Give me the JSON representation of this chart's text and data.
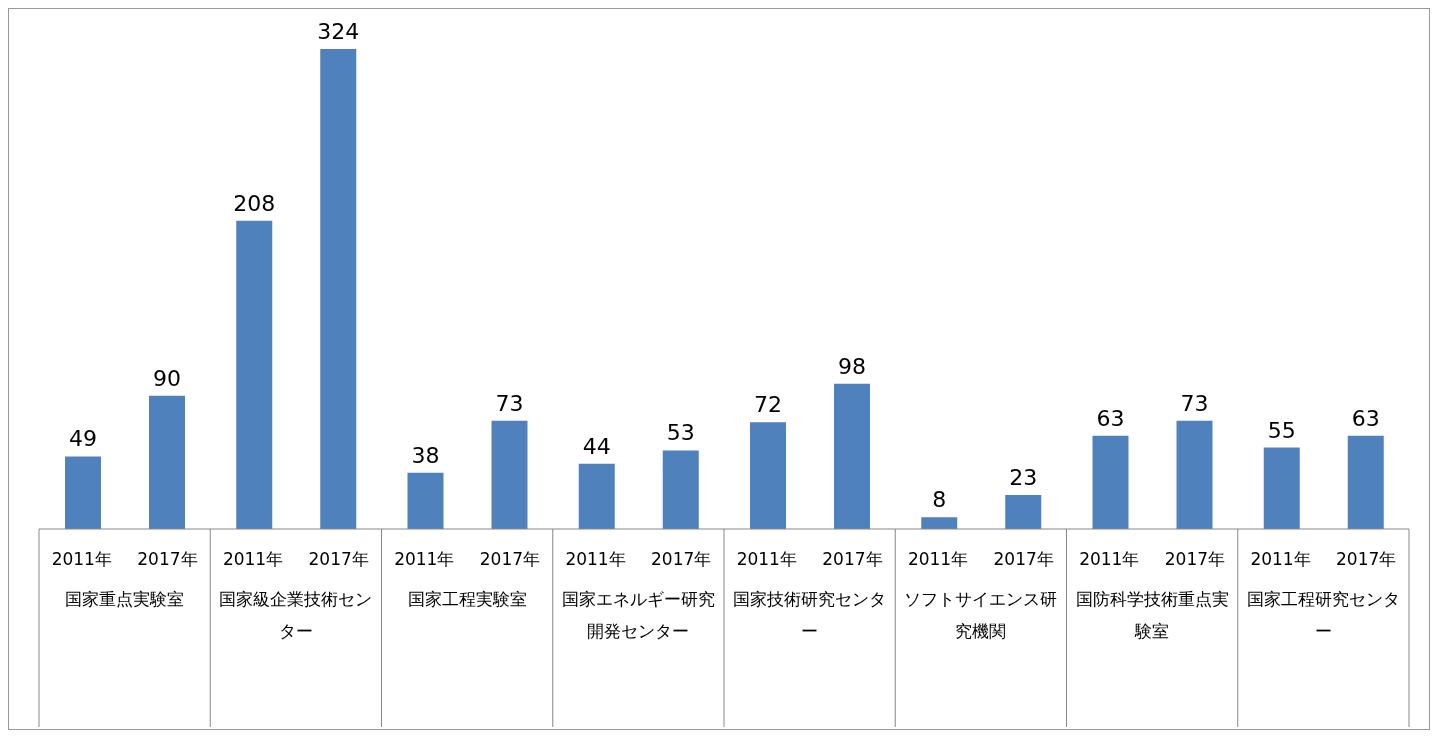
{
  "chart_data": {
    "type": "bar",
    "categories": [
      "国家重点実験室",
      "国家級企業技術センター",
      "国家工程実験室",
      "国家エネルギー研究開発センター",
      "国家技術研究センター",
      "ソフトサイエンス研究機関",
      "国防科学技術重点実験室",
      "国家工程研究センター"
    ],
    "series": [
      {
        "name": "2011年",
        "color": "#4f81bd",
        "values": [
          49,
          208,
          38,
          44,
          72,
          8,
          63,
          55
        ]
      },
      {
        "name": "2017年",
        "color": "#4f81bd",
        "values": [
          90,
          324,
          73,
          53,
          98,
          23,
          73,
          63
        ]
      }
    ],
    "data_labels": true,
    "grid": false,
    "legend": false
  }
}
